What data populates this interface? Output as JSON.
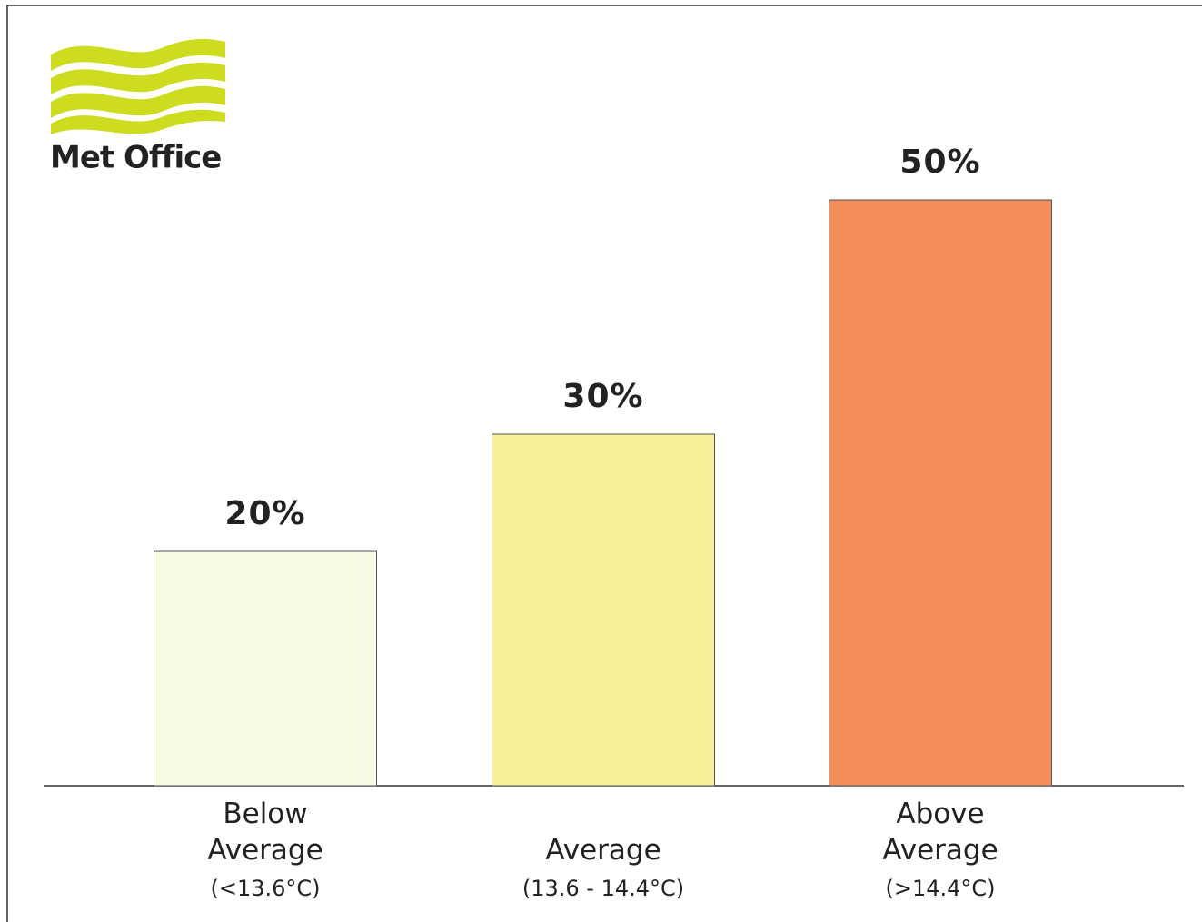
{
  "logo_text": "Met Office",
  "chart_data": {
    "type": "bar",
    "categories": [
      "Below Average",
      "Average",
      "Above Average"
    ],
    "category_ranges": [
      "(<13.6°C)",
      "(13.6 - 14.4°C)",
      "(>14.4°C)"
    ],
    "values": [
      20,
      30,
      50
    ],
    "value_labels": [
      "20%",
      "30%",
      "50%"
    ],
    "colors": [
      "#f8f9e3",
      "#f8f097",
      "#f58c5c"
    ]
  }
}
